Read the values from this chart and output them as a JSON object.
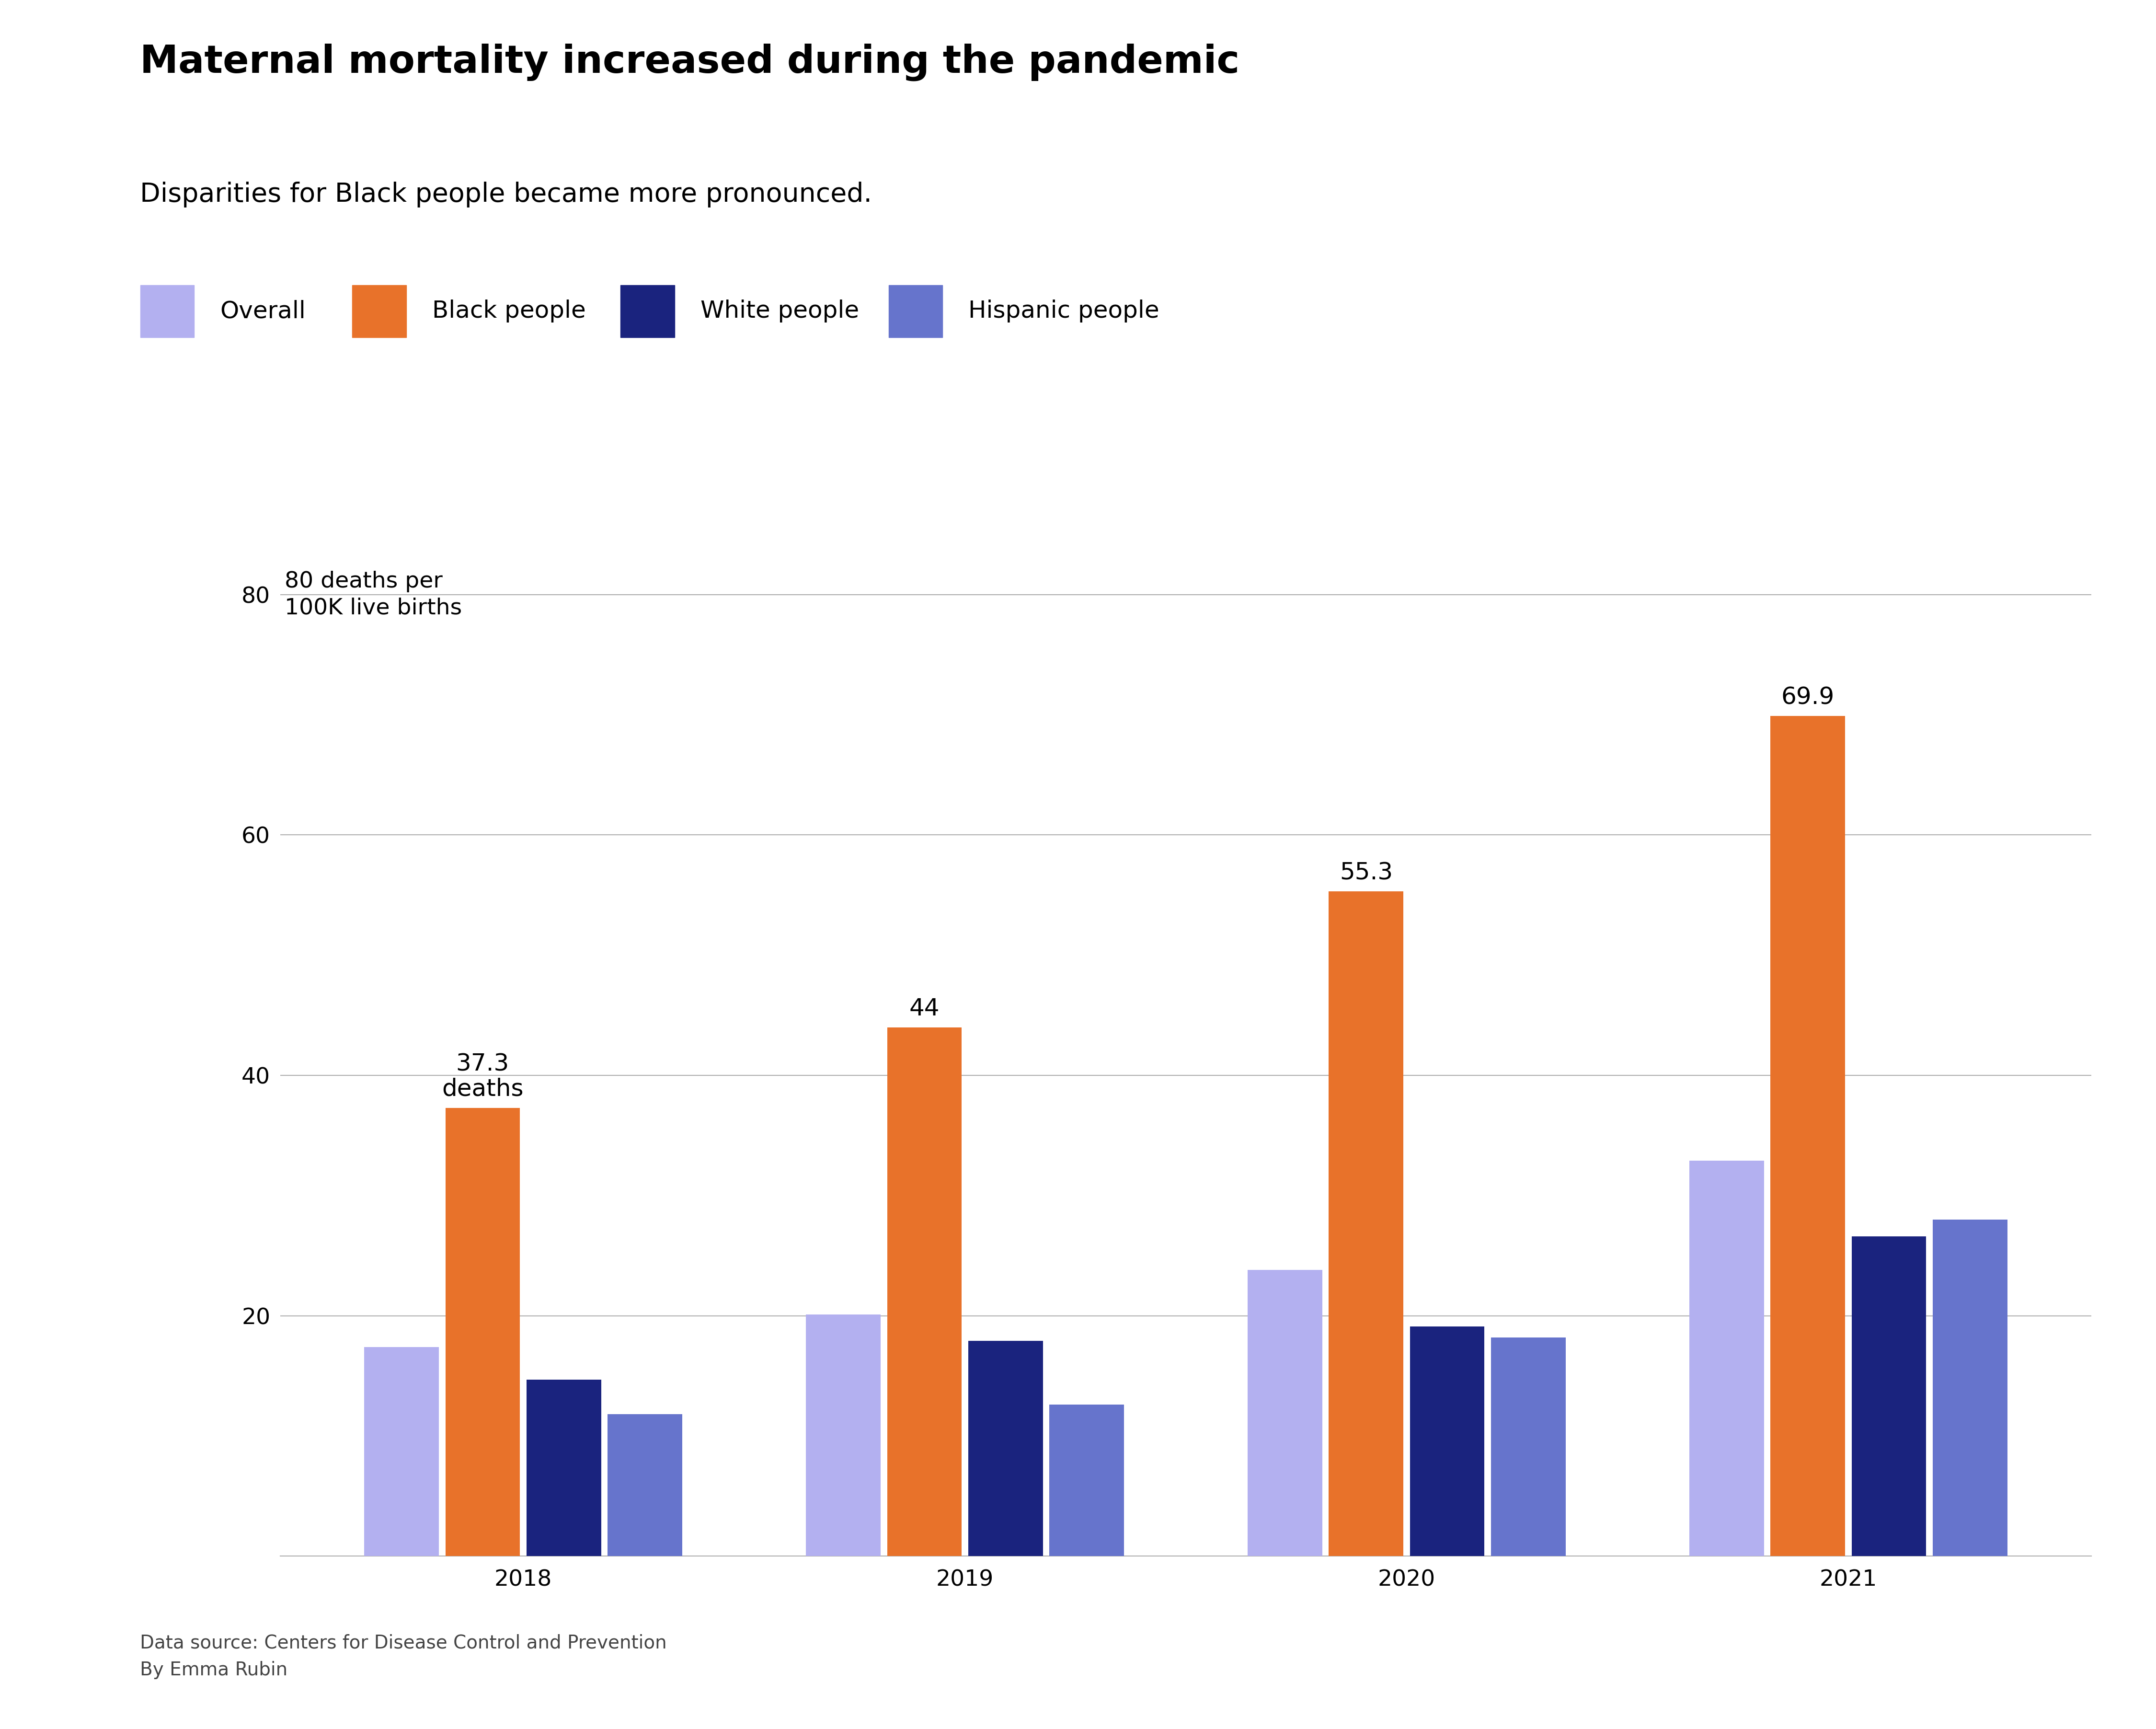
{
  "title": "Maternal mortality increased during the pandemic",
  "subtitle": "Disparities for Black people became more pronounced.",
  "ylabel_line1": "80 deaths per",
  "ylabel_line2": "100K live births",
  "years": [
    2018,
    2019,
    2020,
    2021
  ],
  "series": {
    "Overall": [
      17.4,
      20.1,
      23.8,
      32.9
    ],
    "Black people": [
      37.3,
      44.0,
      55.3,
      69.9
    ],
    "White people": [
      14.7,
      17.9,
      19.1,
      26.6
    ],
    "Hispanic people": [
      11.8,
      12.6,
      18.2,
      28.0
    ]
  },
  "colors": {
    "Overall": "#b3b0f0",
    "Black people": "#e8722a",
    "White people": "#1a237e",
    "Hispanic people": "#6674cc"
  },
  "black_labels": {
    "2018": "37.3\ndeaths",
    "2019": "44",
    "2020": "55.3",
    "2021": "69.9"
  },
  "ylim": [
    0,
    82
  ],
  "yticks": [
    20,
    40,
    60,
    80
  ],
  "source_line1": "Data source: Centers for Disease Control and Prevention",
  "source_line2": "By Emma Rubin",
  "background_color": "#ffffff",
  "title_fontsize": 58,
  "subtitle_fontsize": 40,
  "legend_fontsize": 36,
  "tick_fontsize": 34,
  "bar_label_fontsize": 36,
  "source_fontsize": 28,
  "ylabel_fontsize": 34,
  "group_width": 0.72,
  "bar_gap": 0.015
}
